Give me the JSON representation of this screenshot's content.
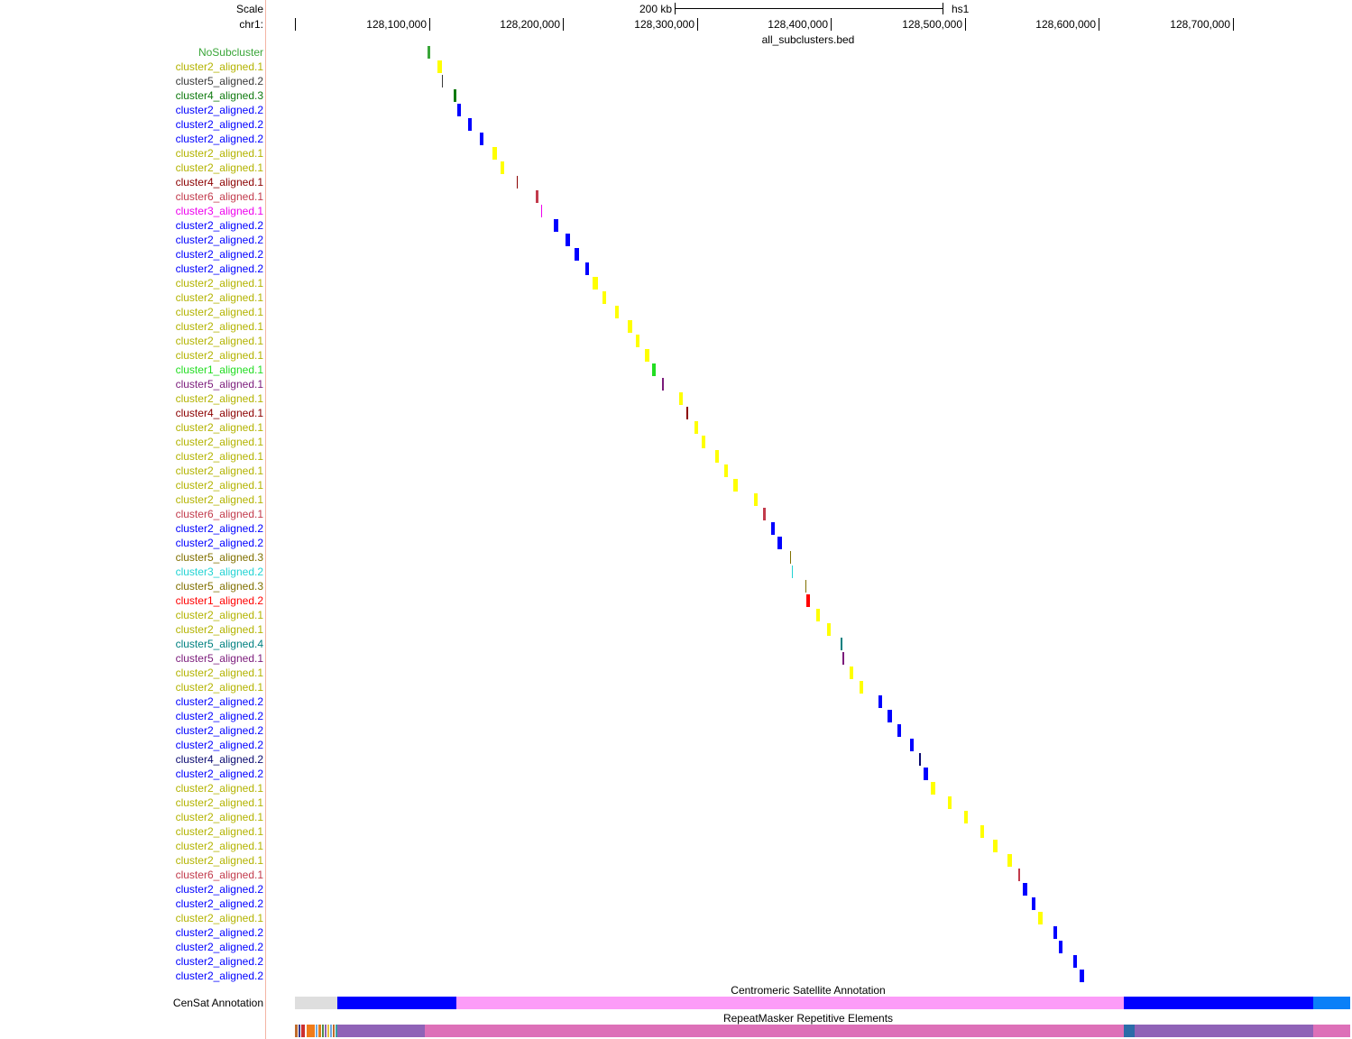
{
  "scale": {
    "label": "Scale",
    "bar_label": "200 kb",
    "assembly": "hs1"
  },
  "ruler": {
    "chrom_label": "chr1:",
    "ticks": [
      {
        "value": 128100000,
        "label": "128,100,000"
      },
      {
        "value": 128200000,
        "label": "128,200,000"
      },
      {
        "value": 128300000,
        "label": "128,300,000"
      },
      {
        "value": 128400000,
        "label": "128,400,000"
      },
      {
        "value": 128500000,
        "label": "128,500,000"
      },
      {
        "value": 128600000,
        "label": "128,600,000"
      },
      {
        "value": 128700000,
        "label": "128,700,000"
      }
    ]
  },
  "bed_track": {
    "title": "all_subclusters.bed",
    "colors": {
      "nosub": "#3aa639",
      "c2a1": "#ffff00",
      "c2a1_text": "#b3b300",
      "c2a2": "#0000ff",
      "c5a2": "#3a3a3a",
      "c4a3": "#0f7a0f",
      "c4a1": "#8b0000",
      "c6a1": "#c23b4c",
      "c3a1": "#ee00ee",
      "c1a1": "#22dd22",
      "c5a1": "#7b1b7b",
      "c5a3": "#807000",
      "c3a2": "#22d3d3",
      "c1a2": "#ff0000",
      "c5a4": "#008080",
      "c4a2": "#0a0a70"
    },
    "features": [
      {
        "name": "NoSubcluster",
        "color": "nosub",
        "start": 128098700,
        "end": 128100700
      },
      {
        "name": "cluster2_aligned.1",
        "color": "c2a1",
        "start": 128106500,
        "end": 128109500
      },
      {
        "name": "cluster5_aligned.2",
        "color": "c5a2",
        "start": 128109700,
        "end": 128110700
      },
      {
        "name": "cluster4_aligned.3",
        "color": "c4a3",
        "start": 128118700,
        "end": 128120700
      },
      {
        "name": "cluster2_aligned.2",
        "color": "c2a2",
        "start": 128121000,
        "end": 128124000
      },
      {
        "name": "cluster2_aligned.2",
        "color": "c2a2",
        "start": 128129000,
        "end": 128132000
      },
      {
        "name": "cluster2_aligned.2",
        "color": "c2a2",
        "start": 128138000,
        "end": 128141000
      },
      {
        "name": "cluster2_aligned.1",
        "color": "c2a1",
        "start": 128147500,
        "end": 128150500
      },
      {
        "name": "cluster2_aligned.1",
        "color": "c2a1",
        "start": 128153500,
        "end": 128156500
      },
      {
        "name": "cluster4_aligned.1",
        "color": "c4a1",
        "start": 128165800,
        "end": 128166700
      },
      {
        "name": "cluster6_aligned.1",
        "color": "c6a1",
        "start": 128180000,
        "end": 128182000
      },
      {
        "name": "cluster3_aligned.1",
        "color": "c3a1",
        "start": 128184000,
        "end": 128184700
      },
      {
        "name": "cluster2_aligned.2",
        "color": "c2a2",
        "start": 128193500,
        "end": 128196500
      },
      {
        "name": "cluster2_aligned.2",
        "color": "c2a2",
        "start": 128202000,
        "end": 128205000
      },
      {
        "name": "cluster2_aligned.2",
        "color": "c2a2",
        "start": 128209000,
        "end": 128212000
      },
      {
        "name": "cluster2_aligned.2",
        "color": "c2a2",
        "start": 128216500,
        "end": 128219500
      },
      {
        "name": "cluster2_aligned.1",
        "color": "c2a1",
        "start": 128222500,
        "end": 128226000
      },
      {
        "name": "cluster2_aligned.1",
        "color": "c2a1",
        "start": 128229500,
        "end": 128232500
      },
      {
        "name": "cluster2_aligned.1",
        "color": "c2a1",
        "start": 128239000,
        "end": 128242000
      },
      {
        "name": "cluster2_aligned.1",
        "color": "c2a1",
        "start": 128248500,
        "end": 128251500
      },
      {
        "name": "cluster2_aligned.1",
        "color": "c2a1",
        "start": 128254500,
        "end": 128257500
      },
      {
        "name": "cluster2_aligned.1",
        "color": "c2a1",
        "start": 128261500,
        "end": 128264500
      },
      {
        "name": "cluster1_aligned.1",
        "color": "c1a1",
        "start": 128266300,
        "end": 128269300
      },
      {
        "name": "cluster5_aligned.1",
        "color": "c5a1",
        "start": 128274000,
        "end": 128275400
      },
      {
        "name": "cluster2_aligned.1",
        "color": "c2a1",
        "start": 128286500,
        "end": 128289500
      },
      {
        "name": "cluster4_aligned.1",
        "color": "c4a1",
        "start": 128292500,
        "end": 128293900
      },
      {
        "name": "cluster2_aligned.1",
        "color": "c2a1",
        "start": 128298000,
        "end": 128301000
      },
      {
        "name": "cluster2_aligned.1",
        "color": "c2a1",
        "start": 128303500,
        "end": 128306500
      },
      {
        "name": "cluster2_aligned.1",
        "color": "c2a1",
        "start": 128313500,
        "end": 128316500
      },
      {
        "name": "cluster2_aligned.1",
        "color": "c2a1",
        "start": 128320500,
        "end": 128323500
      },
      {
        "name": "cluster2_aligned.1",
        "color": "c2a1",
        "start": 128327500,
        "end": 128330500
      },
      {
        "name": "cluster2_aligned.1",
        "color": "c2a1",
        "start": 128342500,
        "end": 128345500
      },
      {
        "name": "cluster6_aligned.1",
        "color": "c6a1",
        "start": 128349500,
        "end": 128351500
      },
      {
        "name": "cluster2_aligned.2",
        "color": "c2a2",
        "start": 128355500,
        "end": 128358500
      },
      {
        "name": "cluster2_aligned.2",
        "color": "c2a2",
        "start": 128360500,
        "end": 128363500
      },
      {
        "name": "cluster5_aligned.3",
        "color": "c5a3",
        "start": 128369800,
        "end": 128370700
      },
      {
        "name": "cluster3_aligned.2",
        "color": "c3a2",
        "start": 128370900,
        "end": 128371500
      },
      {
        "name": "cluster5_aligned.3",
        "color": "c5a3",
        "start": 128380800,
        "end": 128381700
      },
      {
        "name": "cluster1_aligned.2",
        "color": "c1a2",
        "start": 128381500,
        "end": 128384500
      },
      {
        "name": "cluster2_aligned.1",
        "color": "c2a1",
        "start": 128389000,
        "end": 128392000
      },
      {
        "name": "cluster2_aligned.1",
        "color": "c2a1",
        "start": 128397000,
        "end": 128400000
      },
      {
        "name": "cluster5_aligned.4",
        "color": "c5a4",
        "start": 128407700,
        "end": 128408600
      },
      {
        "name": "cluster5_aligned.1",
        "color": "c5a1",
        "start": 128409000,
        "end": 128410300
      },
      {
        "name": "cluster2_aligned.1",
        "color": "c2a1",
        "start": 128414000,
        "end": 128417000
      },
      {
        "name": "cluster2_aligned.1",
        "color": "c2a1",
        "start": 128421500,
        "end": 128424500
      },
      {
        "name": "cluster2_aligned.2",
        "color": "c2a2",
        "start": 128435500,
        "end": 128438500
      },
      {
        "name": "cluster2_aligned.2",
        "color": "c2a2",
        "start": 128442500,
        "end": 128445500
      },
      {
        "name": "cluster2_aligned.2",
        "color": "c2a2",
        "start": 128449500,
        "end": 128452500
      },
      {
        "name": "cluster2_aligned.2",
        "color": "c2a2",
        "start": 128459000,
        "end": 128462000
      },
      {
        "name": "cluster4_aligned.2",
        "color": "c4a2",
        "start": 128466000,
        "end": 128467000
      },
      {
        "name": "cluster2_aligned.2",
        "color": "c2a2",
        "start": 128469500,
        "end": 128472500
      },
      {
        "name": "cluster2_aligned.1",
        "color": "c2a1",
        "start": 128475000,
        "end": 128478000
      },
      {
        "name": "cluster2_aligned.1",
        "color": "c2a1",
        "start": 128487500,
        "end": 128490500
      },
      {
        "name": "cluster2_aligned.1",
        "color": "c2a1",
        "start": 128499500,
        "end": 128502500
      },
      {
        "name": "cluster2_aligned.1",
        "color": "c2a1",
        "start": 128511500,
        "end": 128514500
      },
      {
        "name": "cluster2_aligned.1",
        "color": "c2a1",
        "start": 128521500,
        "end": 128524500
      },
      {
        "name": "cluster2_aligned.1",
        "color": "c2a1",
        "start": 128532000,
        "end": 128535000
      },
      {
        "name": "cluster6_aligned.1",
        "color": "c6a1",
        "start": 128540000,
        "end": 128541400
      },
      {
        "name": "cluster2_aligned.2",
        "color": "c2a2",
        "start": 128543500,
        "end": 128546500
      },
      {
        "name": "cluster2_aligned.2",
        "color": "c2a2",
        "start": 128550000,
        "end": 128553000
      },
      {
        "name": "cluster2_aligned.1",
        "color": "c2a1",
        "start": 128555000,
        "end": 128558000
      },
      {
        "name": "cluster2_aligned.2",
        "color": "c2a2",
        "start": 128566000,
        "end": 128569000
      },
      {
        "name": "cluster2_aligned.2",
        "color": "c2a2",
        "start": 128570000,
        "end": 128573000
      },
      {
        "name": "cluster2_aligned.2",
        "color": "c2a2",
        "start": 128581000,
        "end": 128584000
      },
      {
        "name": "cluster2_aligned.2",
        "color": "c2a2",
        "start": 128586000,
        "end": 128589000
      }
    ]
  },
  "censat": {
    "label": "CenSat Annotation",
    "title": "Centromeric Satellite Annotation",
    "segments": [
      {
        "start": 128000000,
        "end": 128031500,
        "color": "#dedede"
      },
      {
        "start": 128031500,
        "end": 128120500,
        "color": "#0000ff"
      },
      {
        "start": 128120500,
        "end": 128619000,
        "color": "#fc9cf8"
      },
      {
        "start": 128619000,
        "end": 128760000,
        "color": "#0000ff"
      },
      {
        "start": 128760000,
        "end": 128809000,
        "color": "#0a80f8"
      }
    ]
  },
  "rmsk": {
    "title": "RepeatMasker Repetitive Elements",
    "segments": [
      {
        "start": 128000000,
        "end": 128002000,
        "color": "#c06c2c"
      },
      {
        "start": 128002500,
        "end": 128003800,
        "color": "#3c3c8c"
      },
      {
        "start": 128004500,
        "end": 128007500,
        "color": "#cc3030"
      },
      {
        "start": 128008500,
        "end": 128015000,
        "color": "#f07c1a"
      },
      {
        "start": 128015500,
        "end": 128017000,
        "color": "#6fa8dc"
      },
      {
        "start": 128017500,
        "end": 128019500,
        "color": "#e07c20"
      },
      {
        "start": 128020000,
        "end": 128021500,
        "color": "#4c8c4c"
      },
      {
        "start": 128022000,
        "end": 128023500,
        "color": "#9060b0"
      },
      {
        "start": 128024000,
        "end": 128025500,
        "color": "#e8c040"
      },
      {
        "start": 128026000,
        "end": 128027500,
        "color": "#6fa8dc"
      },
      {
        "start": 128028500,
        "end": 128030000,
        "color": "#c06c2c"
      },
      {
        "start": 128030500,
        "end": 128031500,
        "color": "#38a0a0"
      },
      {
        "start": 128031500,
        "end": 128097000,
        "color": "#8f63b7"
      },
      {
        "start": 128097000,
        "end": 128619000,
        "color": "#dd70b8"
      },
      {
        "start": 128619000,
        "end": 128627000,
        "color": "#2b6ca8"
      },
      {
        "start": 128627000,
        "end": 128760000,
        "color": "#8f63b7"
      },
      {
        "start": 128760000,
        "end": 128809000,
        "color": "#dd70b8"
      }
    ]
  }
}
